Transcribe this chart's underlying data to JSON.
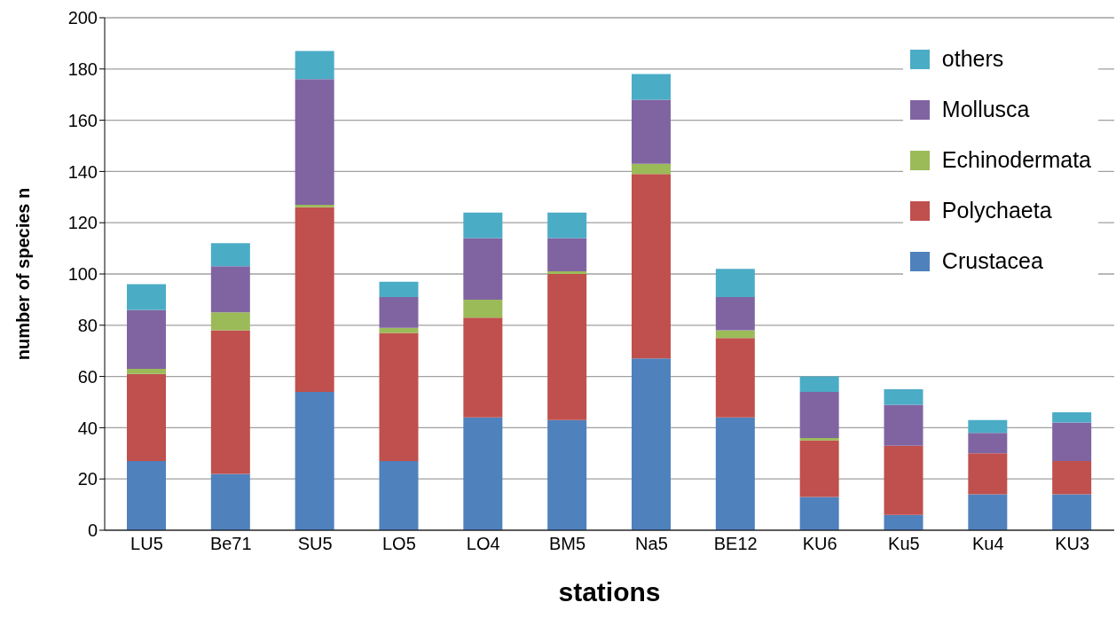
{
  "chart_data": {
    "type": "bar",
    "stacked": true,
    "xlabel": "stations",
    "ylabel": "number of species n",
    "categories": [
      "LU5",
      "Be71",
      "SU5",
      "LO5",
      "LO4",
      "BM5",
      "Na5",
      "BE12",
      "KU6",
      "Ku5",
      "Ku4",
      "KU3"
    ],
    "series": [
      {
        "name": "Crustacea",
        "color": "#4f81bd",
        "values": [
          27,
          22,
          54,
          27,
          44,
          43,
          67,
          44,
          13,
          6,
          14,
          14
        ]
      },
      {
        "name": "Polychaeta",
        "color": "#c0504d",
        "values": [
          34,
          56,
          72,
          50,
          39,
          57,
          72,
          31,
          22,
          27,
          16,
          13
        ]
      },
      {
        "name": "Echinodermata",
        "color": "#9bbb59",
        "values": [
          2,
          7,
          1,
          2,
          7,
          1,
          4,
          3,
          1,
          0,
          0,
          0
        ]
      },
      {
        "name": "Mollusca",
        "color": "#8064a2",
        "values": [
          23,
          18,
          49,
          12,
          24,
          13,
          25,
          13,
          18,
          16,
          8,
          15
        ]
      },
      {
        "name": "others",
        "color": "#4bacc6",
        "values": [
          10,
          9,
          11,
          6,
          10,
          10,
          10,
          11,
          6,
          6,
          5,
          4
        ]
      }
    ],
    "ylim": [
      0,
      200
    ],
    "yticks": [
      0,
      20,
      40,
      60,
      80,
      100,
      120,
      140,
      160,
      180,
      200
    ],
    "grid": "y",
    "legend": "top right"
  }
}
